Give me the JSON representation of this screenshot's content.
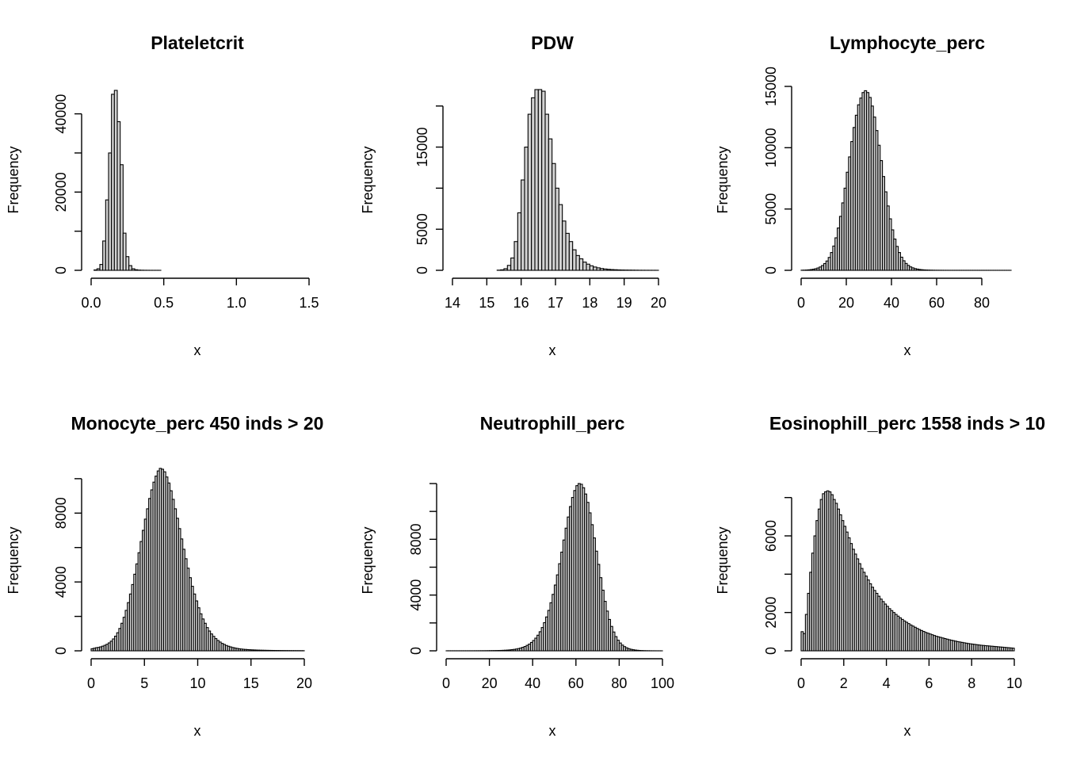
{
  "chart_data": [
    {
      "type": "bar",
      "title": "Plateletcrit",
      "xlabel": "x",
      "ylabel": "Frequency",
      "xlim": [
        0,
        1.5
      ],
      "ylim": [
        0,
        46000
      ],
      "xticks": [
        0.0,
        0.5,
        1.0,
        1.5
      ],
      "xtick_labels": [
        "0.0",
        "0.5",
        "1.0",
        "1.5"
      ],
      "yticks": [
        0,
        20000,
        40000
      ],
      "ytick_labels": [
        "0",
        "20000",
        "40000"
      ],
      "ytick_minor": [
        10000,
        30000
      ],
      "bin_start": 0.0,
      "bin_width": 0.02,
      "values": [
        0,
        100,
        400,
        1500,
        7500,
        18000,
        30000,
        45000,
        46000,
        38000,
        27000,
        9500,
        3500,
        1200,
        400,
        150,
        60,
        30,
        15,
        8,
        5,
        3,
        2,
        2,
        1,
        1,
        1,
        1,
        0,
        0,
        0,
        0,
        0,
        0,
        0,
        0,
        0,
        0,
        0,
        0,
        0,
        0,
        0,
        0,
        0,
        0,
        0,
        0,
        0,
        0,
        0,
        0,
        0,
        0,
        0,
        0,
        0,
        0,
        0,
        0,
        0,
        0,
        0,
        0,
        0,
        0,
        0,
        0,
        0,
        0,
        0,
        0,
        0,
        0
      ]
    },
    {
      "type": "bar",
      "title": "PDW",
      "xlabel": "x",
      "ylabel": "Frequency",
      "xlim": [
        14,
        20
      ],
      "ylim": [
        0,
        22000
      ],
      "xticks": [
        14,
        15,
        16,
        17,
        18,
        19,
        20
      ],
      "xtick_labels": [
        "14",
        "15",
        "16",
        "17",
        "18",
        "19",
        "20"
      ],
      "yticks": [
        0,
        5000,
        15000
      ],
      "ytick_labels": [
        "0",
        "5000",
        "15000"
      ],
      "ytick_minor": [
        10000,
        20000
      ],
      "bin_start": 13.8,
      "bin_width": 0.1,
      "values": [
        0,
        0,
        0,
        0,
        0,
        0,
        0,
        0,
        0,
        0,
        0,
        0,
        0,
        0,
        0,
        20,
        60,
        200,
        600,
        1500,
        3500,
        7000,
        11000,
        15000,
        19000,
        21000,
        22000,
        22000,
        21800,
        19000,
        16000,
        13000,
        10000,
        8000,
        6000,
        4500,
        3500,
        2500,
        1800,
        1400,
        1000,
        750,
        550,
        400,
        300,
        220,
        160,
        120,
        90,
        70,
        50,
        40,
        30,
        25,
        20,
        15,
        10,
        8,
        6,
        5,
        4,
        3
      ]
    },
    {
      "type": "bar",
      "title": "Lymphocyte_perc",
      "xlabel": "x",
      "ylabel": "Frequency",
      "xlim": [
        0,
        80
      ],
      "ylim": [
        0,
        15000
      ],
      "xticks": [
        0,
        20,
        40,
        60,
        80
      ],
      "xtick_labels": [
        "0",
        "20",
        "40",
        "60",
        "80"
      ],
      "yticks": [
        0,
        5000,
        10000,
        15000
      ],
      "ytick_labels": [
        "0",
        "5000",
        "10000",
        "15000"
      ],
      "ytick_minor": [],
      "bin_start": 0,
      "bin_width": 1,
      "values": [
        10,
        15,
        25,
        40,
        60,
        90,
        130,
        190,
        270,
        390,
        550,
        760,
        1050,
        1450,
        1980,
        2650,
        3450,
        4400,
        5500,
        6700,
        8000,
        9250,
        10500,
        11650,
        12650,
        13500,
        14050,
        14500,
        14650,
        14500,
        14100,
        13400,
        12500,
        11400,
        10200,
        8950,
        7650,
        6400,
        5250,
        4200,
        3300,
        2550,
        1950,
        1450,
        1070,
        780,
        560,
        400,
        280,
        200,
        140,
        100,
        70,
        50,
        35,
        25,
        18,
        13,
        9,
        6,
        5,
        4,
        3,
        2,
        2,
        1,
        1,
        1,
        1,
        1,
        1,
        1,
        1,
        1,
        1,
        1,
        1,
        1,
        1,
        1,
        1,
        1,
        1,
        1,
        1,
        1,
        1,
        1,
        1,
        1,
        1,
        1,
        1
      ]
    },
    {
      "type": "bar",
      "title": "Monocyte_perc 450 inds > 20",
      "xlabel": "x",
      "ylabel": "Frequency",
      "xlim": [
        0,
        20
      ],
      "ylim": [
        0,
        10500
      ],
      "xticks": [
        0,
        5,
        10,
        15,
        20
      ],
      "xtick_labels": [
        "0",
        "5",
        "10",
        "15",
        "20"
      ],
      "yticks": [
        0,
        4000,
        8000
      ],
      "ytick_labels": [
        "0",
        "4000",
        "8000"
      ],
      "ytick_minor": [
        2000,
        6000,
        10000
      ],
      "bin_start": 0,
      "bin_width": 0.2,
      "values": [
        120,
        150,
        180,
        200,
        230,
        270,
        320,
        380,
        460,
        560,
        690,
        850,
        1050,
        1300,
        1600,
        1950,
        2350,
        2800,
        3300,
        3850,
        4450,
        5050,
        5700,
        6350,
        7000,
        7650,
        8250,
        8850,
        9350,
        9800,
        10150,
        10450,
        10600,
        10550,
        10400,
        10100,
        9750,
        9300,
        8800,
        8250,
        7700,
        7100,
        6500,
        5900,
        5350,
        4800,
        4250,
        3750,
        3300,
        2900,
        2500,
        2150,
        1850,
        1600,
        1350,
        1150,
        980,
        840,
        710,
        600,
        510,
        430,
        370,
        310,
        265,
        225,
        190,
        165,
        140,
        120,
        105,
        90,
        80,
        70,
        62,
        55,
        50,
        45,
        40,
        36,
        33,
        30,
        27,
        25,
        23,
        21,
        19,
        17,
        16,
        15,
        14,
        13,
        12,
        11,
        10,
        10,
        9,
        9,
        8,
        8
      ]
    },
    {
      "type": "bar",
      "title": "Neutrophill_perc",
      "xlabel": "x",
      "ylabel": "Frequency",
      "xlim": [
        0,
        100
      ],
      "ylim": [
        0,
        12000
      ],
      "xticks": [
        0,
        20,
        40,
        60,
        80,
        100
      ],
      "xtick_labels": [
        "0",
        "20",
        "40",
        "60",
        "80",
        "100"
      ],
      "yticks": [
        0,
        4000,
        8000
      ],
      "ytick_labels": [
        "0",
        "4000",
        "8000"
      ],
      "ytick_minor": [
        2000,
        6000,
        10000,
        12000
      ],
      "bin_start": 0,
      "bin_width": 1,
      "values": [
        2,
        2,
        2,
        2,
        2,
        2,
        2,
        2,
        2,
        2,
        3,
        3,
        3,
        4,
        4,
        5,
        6,
        7,
        8,
        10,
        12,
        14,
        17,
        20,
        24,
        29,
        35,
        43,
        53,
        66,
        82,
        102,
        128,
        160,
        200,
        250,
        310,
        390,
        480,
        600,
        740,
        910,
        1120,
        1370,
        1670,
        2020,
        2430,
        2900,
        3450,
        4050,
        4720,
        5450,
        6250,
        7080,
        7950,
        8800,
        9600,
        10350,
        11000,
        11500,
        11850,
        12000,
        11950,
        11700,
        11250,
        10650,
        9900,
        9050,
        8100,
        7150,
        6200,
        5250,
        4350,
        3550,
        2850,
        2250,
        1750,
        1350,
        1020,
        760,
        560,
        410,
        300,
        215,
        155,
        110,
        78,
        55,
        38,
        26,
        18,
        12,
        8,
        6,
        4,
        3,
        2,
        1,
        1,
        1
      ]
    },
    {
      "type": "bar",
      "title": "Eosinophill_perc 1558 inds > 10",
      "xlabel": "x",
      "ylabel": "Frequency",
      "xlim": [
        0,
        10
      ],
      "ylim": [
        0,
        8400
      ],
      "xticks": [
        0,
        2,
        4,
        6,
        8,
        10
      ],
      "xtick_labels": [
        "0",
        "2",
        "4",
        "6",
        "8",
        "10"
      ],
      "yticks": [
        0,
        2000,
        6000
      ],
      "ytick_labels": [
        "0",
        "2000",
        "6000"
      ],
      "ytick_minor": [
        4000,
        8000
      ],
      "bin_start": 0,
      "bin_width": 0.1,
      "values": [
        1000,
        900,
        1900,
        3000,
        4100,
        5100,
        6000,
        6800,
        7400,
        7900,
        8200,
        8300,
        8350,
        8300,
        8150,
        7900,
        7700,
        7400,
        7100,
        6800,
        6500,
        6200,
        5900,
        5600,
        5300,
        5050,
        4800,
        4550,
        4300,
        4100,
        3900,
        3700,
        3500,
        3320,
        3150,
        3000,
        2850,
        2700,
        2570,
        2440,
        2320,
        2200,
        2100,
        2000,
        1900,
        1810,
        1720,
        1640,
        1560,
        1490,
        1420,
        1350,
        1290,
        1230,
        1170,
        1110,
        1060,
        1010,
        960,
        920,
        880,
        840,
        800,
        760,
        730,
        700,
        670,
        640,
        610,
        580,
        555,
        530,
        505,
        480,
        460,
        440,
        420,
        400,
        380,
        365,
        350,
        335,
        320,
        305,
        290,
        280,
        270,
        260,
        250,
        240,
        230,
        220,
        210,
        200,
        190,
        180,
        170,
        160,
        150,
        140
      ]
    }
  ]
}
